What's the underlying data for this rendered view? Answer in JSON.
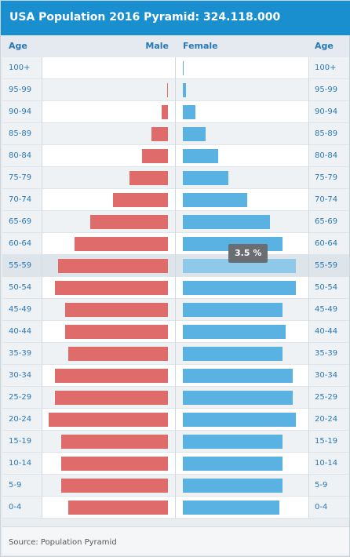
{
  "header": {
    "title": "USA Population 2016 Pyramid: 324.118.000"
  },
  "table": {
    "age_left_label": "Age",
    "male_label": "Male",
    "female_label": "Female",
    "age_right_label": "Age"
  },
  "tooltip": {
    "text": "3.5 %",
    "row": "55-59",
    "series": "Female"
  },
  "footer": {
    "source": "Source: Population Pyramid"
  },
  "colors": {
    "header": "#1a8fd0",
    "male": "#e06b6b",
    "female": "#5ab2e2",
    "female_highlight": "#8fc9ea"
  },
  "chart_data": {
    "type": "bar",
    "orientation": "horizontal-pyramid",
    "title": "USA Population 2016 Pyramid: 324.118.000",
    "unit": "%",
    "xlim": [
      0,
      3.7
    ],
    "grid": false,
    "categories": [
      "100+",
      "95-99",
      "90-94",
      "85-89",
      "80-84",
      "75-79",
      "70-74",
      "65-69",
      "60-64",
      "55-59",
      "50-54",
      "45-49",
      "40-44",
      "35-39",
      "30-34",
      "25-29",
      "20-24",
      "15-19",
      "10-14",
      "5-9",
      "0-4"
    ],
    "series": [
      {
        "name": "Male",
        "values": [
          0.0,
          0.02,
          0.2,
          0.5,
          0.8,
          1.2,
          1.7,
          2.4,
          2.9,
          3.4,
          3.5,
          3.2,
          3.2,
          3.1,
          3.5,
          3.5,
          3.7,
          3.3,
          3.3,
          3.3,
          3.1
        ]
      },
      {
        "name": "Female",
        "values": [
          0.01,
          0.1,
          0.4,
          0.7,
          1.1,
          1.4,
          2.0,
          2.7,
          3.1,
          3.5,
          3.5,
          3.1,
          3.2,
          3.1,
          3.4,
          3.4,
          3.5,
          3.1,
          3.1,
          3.1,
          3.0
        ]
      }
    ]
  }
}
